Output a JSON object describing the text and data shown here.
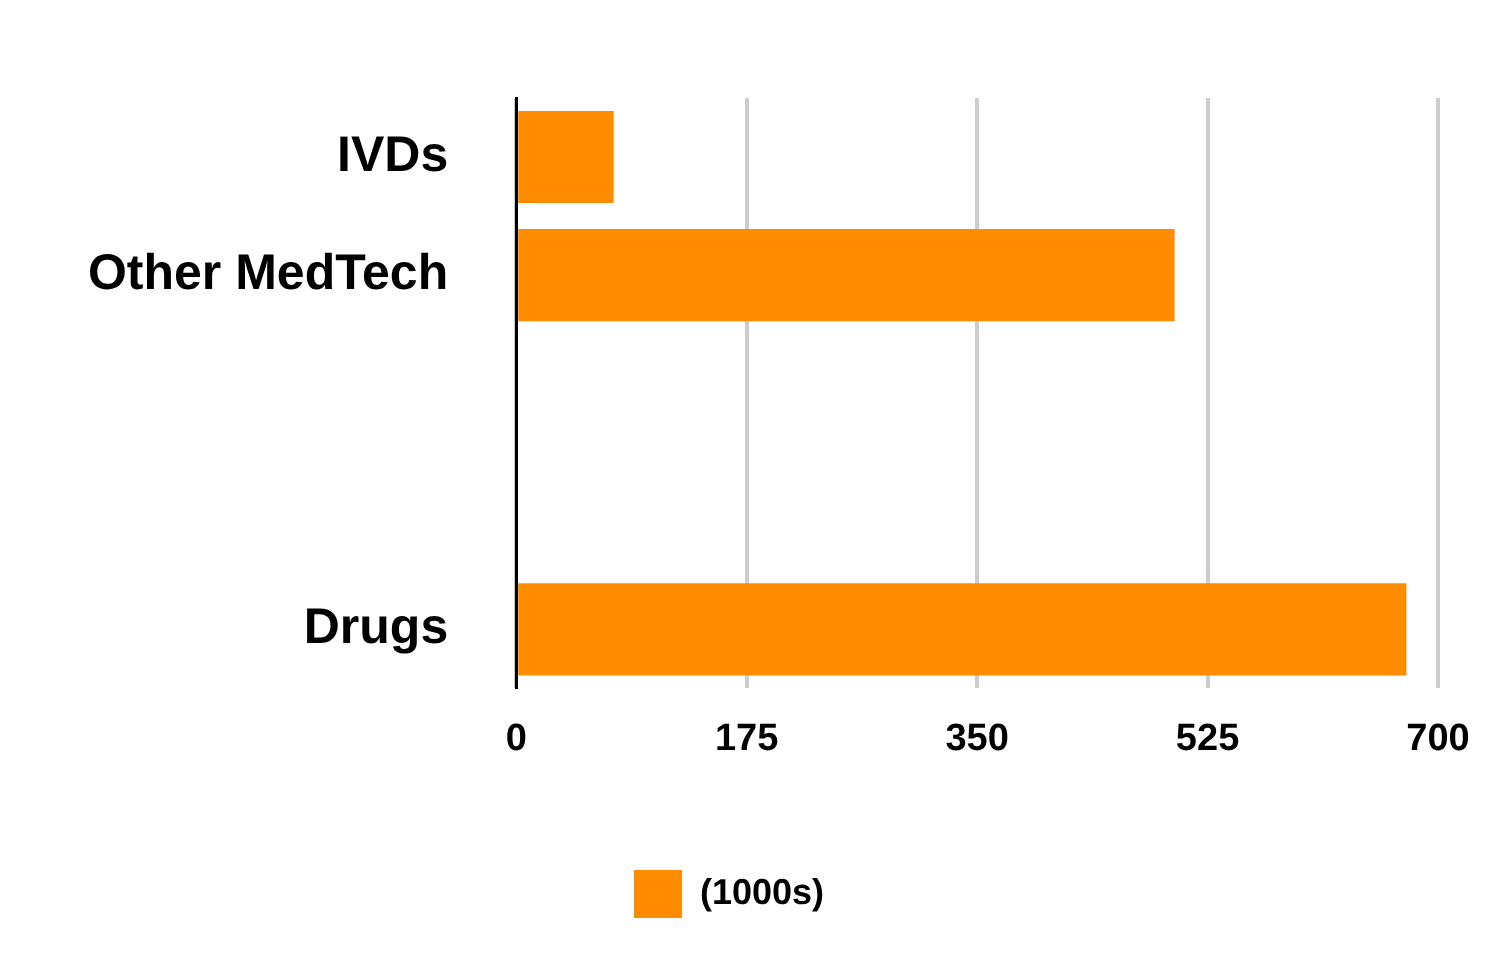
{
  "chart_data": {
    "type": "bar",
    "orientation": "horizontal",
    "categories": [
      "IVDs",
      "Other MedTech",
      null,
      null,
      "Drugs"
    ],
    "series": [
      {
        "name": "(1000s)",
        "color": "#ff8c00",
        "values": [
          74,
          500,
          null,
          null,
          676
        ]
      }
    ],
    "xlim": [
      0,
      700
    ],
    "xticks": [
      0,
      175,
      350,
      525,
      700
    ],
    "grid": "x",
    "legend": "bottom"
  }
}
